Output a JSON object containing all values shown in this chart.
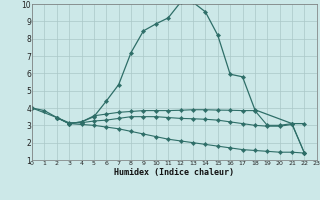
{
  "xlabel": "Humidex (Indice chaleur)",
  "background_color": "#cce8e8",
  "grid_color": "#aac8c8",
  "line_color": "#2e6e68",
  "xlim": [
    0,
    23
  ],
  "ylim": [
    1,
    10
  ],
  "yticks": [
    1,
    2,
    3,
    4,
    5,
    6,
    7,
    8,
    9,
    10
  ],
  "xticks": [
    0,
    1,
    2,
    3,
    4,
    5,
    6,
    7,
    8,
    9,
    10,
    11,
    12,
    13,
    14,
    15,
    16,
    17,
    18,
    19,
    20,
    21,
    22,
    23
  ],
  "curve1_x": [
    0,
    1,
    2,
    3,
    4,
    5,
    6,
    7,
    8,
    9,
    10,
    11,
    12,
    13,
    14,
    15,
    16,
    17,
    18,
    21,
    22
  ],
  "curve1_y": [
    4.0,
    3.85,
    3.45,
    3.1,
    3.2,
    3.5,
    4.4,
    5.35,
    7.2,
    8.45,
    8.85,
    9.2,
    10.1,
    10.1,
    9.55,
    8.2,
    5.95,
    5.8,
    3.9,
    3.1,
    3.1
  ],
  "curve2_x": [
    0,
    2,
    3,
    4,
    5,
    6,
    7,
    8,
    9,
    10,
    11,
    12,
    13,
    14,
    15,
    16,
    17,
    18,
    19,
    20,
    21,
    22
  ],
  "curve2_y": [
    4.0,
    3.45,
    3.1,
    3.2,
    3.55,
    3.65,
    3.75,
    3.8,
    3.85,
    3.85,
    3.85,
    3.87,
    3.9,
    3.9,
    3.88,
    3.87,
    3.85,
    3.85,
    3.0,
    3.0,
    3.1,
    1.4
  ],
  "curve3_x": [
    2,
    3,
    4,
    5,
    6,
    7,
    8,
    9,
    10,
    11,
    12,
    13,
    14,
    15,
    16,
    17,
    18,
    19,
    20,
    21,
    22
  ],
  "curve3_y": [
    3.45,
    3.15,
    3.15,
    3.25,
    3.3,
    3.4,
    3.5,
    3.5,
    3.5,
    3.45,
    3.4,
    3.38,
    3.35,
    3.3,
    3.2,
    3.1,
    3.0,
    2.95,
    2.95,
    3.05,
    1.4
  ],
  "curve4_x": [
    2,
    3,
    4,
    5,
    6,
    7,
    8,
    9,
    10,
    11,
    12,
    13,
    14,
    15,
    16,
    17,
    18,
    19,
    20,
    21,
    22
  ],
  "curve4_y": [
    3.45,
    3.1,
    3.05,
    3.0,
    2.9,
    2.8,
    2.65,
    2.5,
    2.35,
    2.2,
    2.1,
    2.0,
    1.9,
    1.8,
    1.7,
    1.6,
    1.55,
    1.5,
    1.45,
    1.45,
    1.4
  ]
}
